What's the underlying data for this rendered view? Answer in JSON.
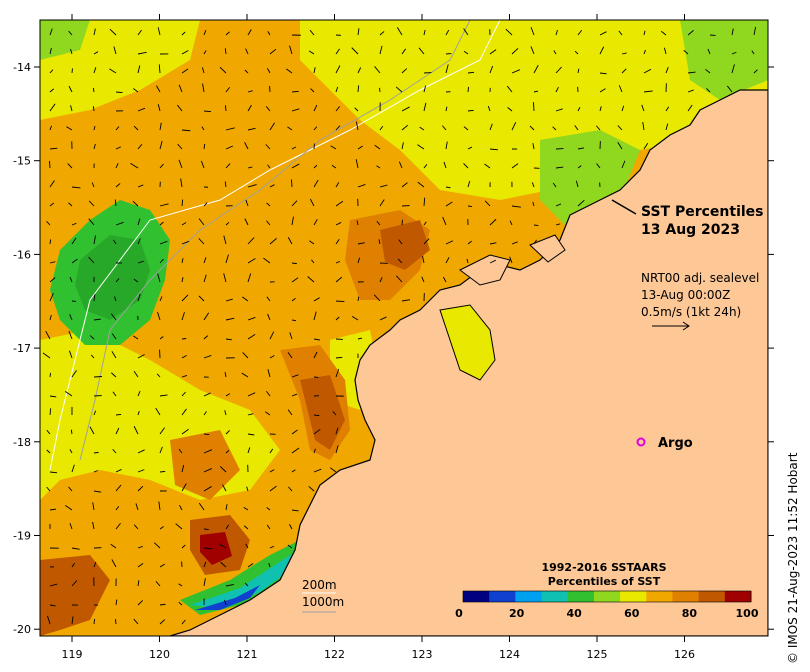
{
  "map": {
    "lon_ticks": [
      "119",
      "120",
      "121",
      "122",
      "123",
      "124",
      "125",
      "126"
    ],
    "lat_ticks": [
      "-14",
      "-15",
      "-16",
      "-17",
      "-18",
      "-19",
      "-20"
    ],
    "colors": {
      "land": "#fdc796",
      "coast": "#000000",
      "p0": "#000080",
      "p10": "#1040d0",
      "p20": "#00a0f0",
      "p30": "#10c0b0",
      "p40": "#30c030",
      "p50": "#90d820",
      "p60": "#e8e800",
      "p70": "#f0a800",
      "p80": "#e08000",
      "p90": "#c05800",
      "p100": "#a00000"
    }
  },
  "title": {
    "line1": "SST Percentiles",
    "line2": "13 Aug 2023"
  },
  "current_note": {
    "line1": "NRT00 adj. sealevel",
    "line2": "13-Aug 00:00Z",
    "line3": "0.5m/s (1kt 24h)"
  },
  "argo": {
    "label": "Argo",
    "color": "#e000e0"
  },
  "depth_legend": {
    "line1": "200m",
    "line2": "1000m"
  },
  "colorbar": {
    "title_line1": "1992-2016 SSTAARS",
    "title_line2": "Percentiles of SST",
    "ticks": [
      "0",
      "20",
      "40",
      "60",
      "80",
      "100"
    ],
    "segments": [
      "#000080",
      "#1040d0",
      "#00a0f0",
      "#10c0b0",
      "#30c030",
      "#90d820",
      "#e8e800",
      "#f0a800",
      "#e08000",
      "#c05800",
      "#a00000"
    ]
  },
  "credit": "© IMOS 21-Aug-2023 11:52 Hobart"
}
